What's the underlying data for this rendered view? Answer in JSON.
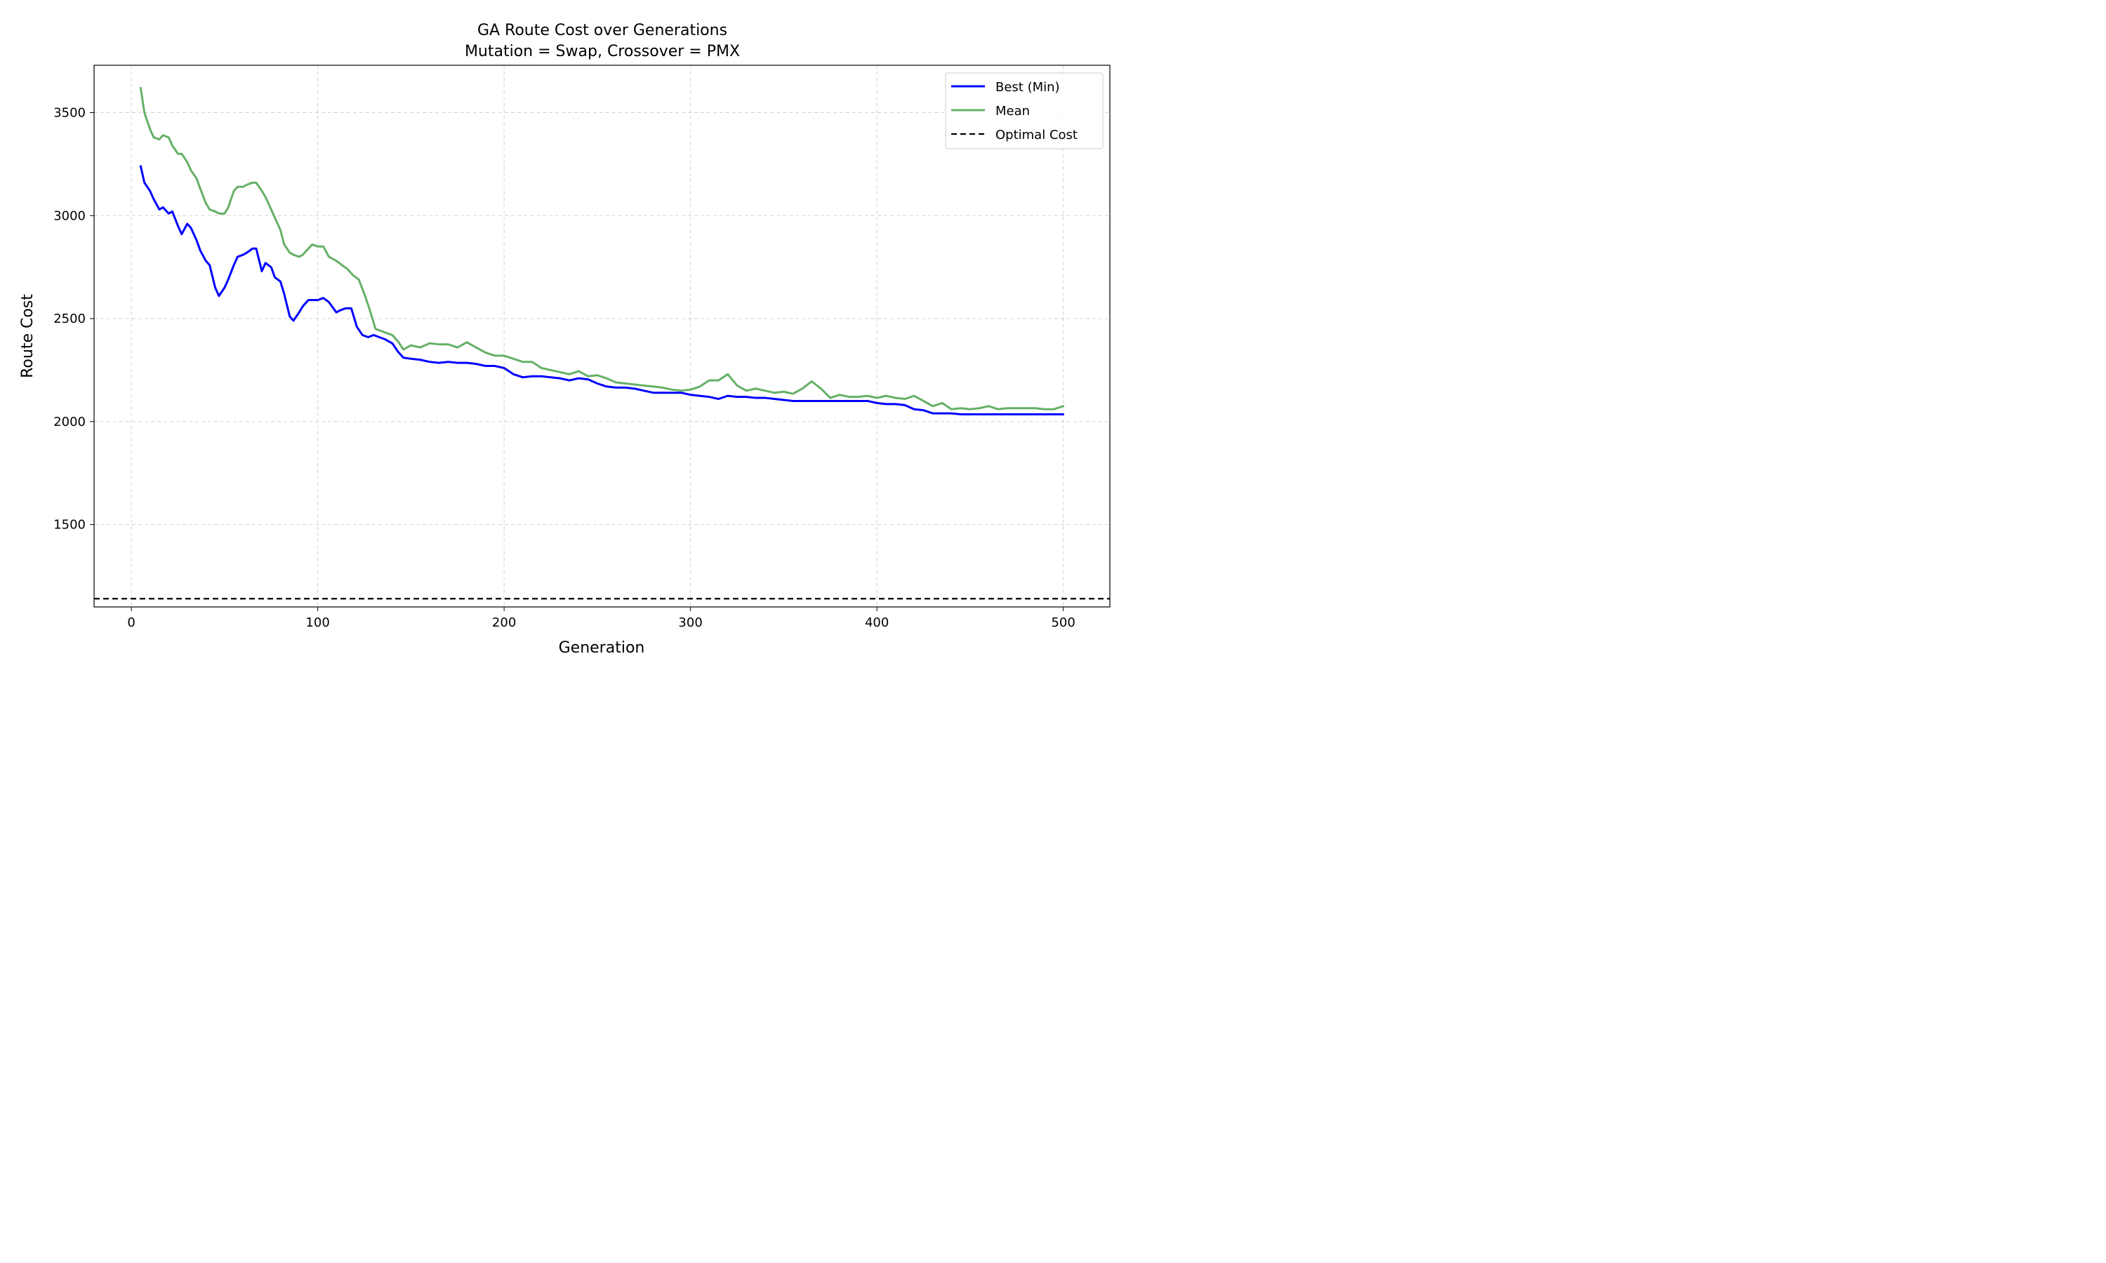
{
  "chart_data": {
    "type": "line",
    "title": "GA Route Cost over Generations",
    "subtitle": "Mutation = Swap, Crossover = PMX",
    "xlabel": "Generation",
    "ylabel": "Route Cost",
    "xlim": [
      -20,
      525
    ],
    "ylim": [
      1100,
      3730
    ],
    "xticks": [
      0,
      100,
      200,
      300,
      400,
      500
    ],
    "yticks": [
      1500,
      2000,
      2500,
      3000,
      3500
    ],
    "grid": true,
    "legend": {
      "location": "top-right",
      "entries": [
        "Best (Min)",
        "Mean",
        "Optimal Cost"
      ]
    },
    "series": [
      {
        "name": "Best (Min)",
        "color": "#0000ff",
        "x": [
          5,
          7,
          10,
          12,
          15,
          17,
          20,
          22,
          25,
          27,
          30,
          32,
          35,
          37,
          40,
          42,
          45,
          47,
          50,
          52,
          55,
          57,
          60,
          62,
          65,
          67,
          70,
          72,
          75,
          77,
          80,
          82,
          85,
          87,
          90,
          92,
          95,
          97,
          100,
          103,
          106,
          110,
          112,
          115,
          118,
          121,
          124,
          127,
          130,
          133,
          136,
          140,
          143,
          146,
          150,
          155,
          160,
          165,
          170,
          175,
          180,
          185,
          190,
          195,
          200,
          205,
          210,
          215,
          220,
          225,
          230,
          235,
          240,
          245,
          250,
          255,
          260,
          265,
          270,
          275,
          280,
          285,
          290,
          295,
          300,
          305,
          310,
          315,
          320,
          325,
          330,
          335,
          340,
          345,
          350,
          355,
          360,
          365,
          370,
          375,
          380,
          385,
          390,
          395,
          400,
          405,
          410,
          415,
          420,
          425,
          430,
          435,
          440,
          445,
          450,
          455,
          460,
          465,
          470,
          475,
          480,
          485,
          490,
          495,
          500
        ],
        "values": [
          3240,
          3160,
          3120,
          3080,
          3030,
          3040,
          3010,
          3020,
          2950,
          2910,
          2960,
          2940,
          2880,
          2830,
          2780,
          2760,
          2650,
          2610,
          2650,
          2690,
          2760,
          2800,
          2810,
          2820,
          2840,
          2840,
          2730,
          2770,
          2750,
          2700,
          2680,
          2620,
          2510,
          2490,
          2530,
          2560,
          2590,
          2590,
          2590,
          2600,
          2580,
          2530,
          2540,
          2550,
          2550,
          2460,
          2420,
          2410,
          2420,
          2410,
          2400,
          2380,
          2340,
          2310,
          2305,
          2300,
          2290,
          2285,
          2290,
          2285,
          2285,
          2280,
          2270,
          2270,
          2260,
          2230,
          2215,
          2220,
          2220,
          2215,
          2210,
          2200,
          2210,
          2205,
          2185,
          2170,
          2165,
          2165,
          2160,
          2150,
          2140,
          2140,
          2140,
          2140,
          2130,
          2125,
          2120,
          2110,
          2125,
          2120,
          2120,
          2115,
          2115,
          2110,
          2105,
          2100,
          2100,
          2100,
          2100,
          2100,
          2100,
          2100,
          2100,
          2100,
          2090,
          2085,
          2085,
          2080,
          2060,
          2055,
          2040,
          2040,
          2040,
          2035,
          2035,
          2035,
          2035,
          2035,
          2035,
          2035,
          2035,
          2035,
          2035,
          2035,
          2035
        ]
      },
      {
        "name": "Mean",
        "color": "#66b066",
        "x": [
          5,
          7,
          10,
          12,
          15,
          17,
          20,
          22,
          25,
          27,
          30,
          32,
          35,
          37,
          40,
          42,
          45,
          47,
          50,
          52,
          55,
          57,
          60,
          62,
          65,
          67,
          70,
          72,
          75,
          77,
          80,
          82,
          85,
          87,
          90,
          92,
          95,
          97,
          100,
          103,
          106,
          110,
          113,
          116,
          119,
          122,
          125,
          128,
          131,
          134,
          137,
          140,
          143,
          146,
          150,
          155,
          160,
          165,
          170,
          175,
          180,
          185,
          190,
          195,
          200,
          205,
          210,
          215,
          220,
          225,
          230,
          235,
          240,
          245,
          250,
          255,
          260,
          265,
          270,
          275,
          280,
          285,
          290,
          295,
          300,
          305,
          310,
          315,
          320,
          325,
          330,
          335,
          340,
          345,
          350,
          355,
          360,
          365,
          370,
          375,
          380,
          385,
          390,
          395,
          400,
          405,
          410,
          415,
          420,
          425,
          430,
          435,
          440,
          445,
          450,
          455,
          460,
          465,
          470,
          475,
          480,
          485,
          490,
          495,
          500
        ],
        "values": [
          3620,
          3500,
          3420,
          3380,
          3370,
          3390,
          3380,
          3340,
          3300,
          3300,
          3260,
          3220,
          3180,
          3130,
          3060,
          3030,
          3020,
          3010,
          3010,
          3040,
          3120,
          3140,
          3140,
          3150,
          3160,
          3160,
          3120,
          3090,
          3030,
          2990,
          2930,
          2860,
          2820,
          2810,
          2800,
          2810,
          2840,
          2860,
          2850,
          2850,
          2800,
          2780,
          2760,
          2740,
          2710,
          2690,
          2620,
          2540,
          2450,
          2440,
          2430,
          2420,
          2390,
          2350,
          2370,
          2360,
          2380,
          2375,
          2375,
          2360,
          2385,
          2360,
          2335,
          2320,
          2320,
          2305,
          2290,
          2290,
          2260,
          2250,
          2240,
          2230,
          2245,
          2220,
          2225,
          2210,
          2190,
          2185,
          2180,
          2175,
          2170,
          2165,
          2155,
          2150,
          2155,
          2170,
          2200,
          2200,
          2230,
          2175,
          2150,
          2160,
          2150,
          2140,
          2145,
          2135,
          2160,
          2195,
          2160,
          2115,
          2130,
          2120,
          2120,
          2125,
          2115,
          2125,
          2115,
          2110,
          2125,
          2100,
          2075,
          2090,
          2060,
          2065,
          2060,
          2065,
          2075,
          2060,
          2065,
          2065,
          2065,
          2065,
          2060,
          2060,
          2075
        ]
      },
      {
        "name": "Optimal Cost",
        "color": "#000000",
        "dashed": true,
        "constant": 1140
      }
    ]
  }
}
